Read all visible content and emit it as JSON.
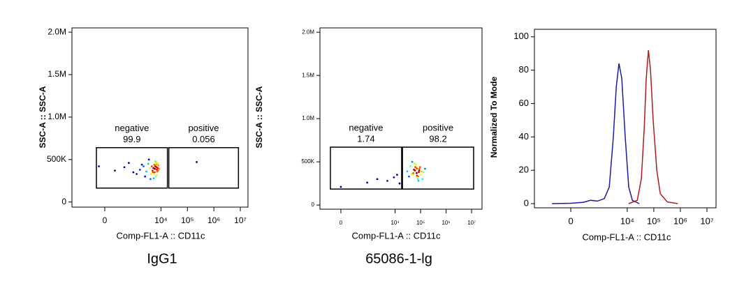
{
  "chart_data": [
    {
      "type": "scatter",
      "title": "IgG1",
      "xlabel": "Comp-FL1-A :: CD11c",
      "ylabel": "SSC-A :: SSC-A",
      "xscale": "biex",
      "color_map": "jet",
      "xlim": [
        -1300,
        19500000
      ],
      "ylim": [
        -60000,
        2050000
      ],
      "xticks": [
        0,
        {
          "value": 10000,
          "label": "10⁴"
        },
        {
          "value": 100000,
          "label": "10⁵"
        },
        {
          "value": 1000000,
          "label": "10⁶"
        },
        {
          "value": 10000000,
          "label": "10⁷"
        }
      ],
      "yticks": [
        0,
        {
          "value": 500000,
          "label": "500K"
        },
        {
          "value": 1000000,
          "label": "1.0M"
        },
        {
          "value": 1500000,
          "label": "1.5M"
        },
        {
          "value": 2000000,
          "label": "2.0M"
        }
      ],
      "x": [
        5200,
        6100,
        7000,
        5800,
        6600,
        7500,
        4800,
        6300,
        5500,
        7200,
        6800,
        5900,
        6400,
        8000,
        4500,
        5000,
        7800,
        6100,
        5600,
        6900,
        3800,
        4200,
        3300,
        2800,
        2200,
        1600,
        900,
        400,
        150,
        -80,
        2500,
        3500,
        1200,
        600,
        4000,
        1900,
        7400,
        8600,
        5300,
        6700,
        224000
      ],
      "values": [
        400000,
        420000,
        380000,
        350000,
        440000,
        400000,
        370000,
        460000,
        330000,
        360000,
        410000,
        390000,
        300000,
        430000,
        420000,
        350000,
        370000,
        480000,
        440000,
        320000,
        400000,
        330000,
        450000,
        360000,
        420000,
        380000,
        350000,
        410000,
        370000,
        420000,
        300000,
        500000,
        330000,
        460000,
        270000,
        440000,
        450000,
        390000,
        280000,
        470000,
        470000
      ],
      "gates": [
        {
          "name": "negative",
          "value": 99.9,
          "x": [
            -119,
            17500
          ],
          "y": [
            164000,
            640000
          ]
        },
        {
          "name": "positive",
          "value": 0.056,
          "x": [
            19800,
            8500000
          ],
          "y": [
            164000,
            640000
          ]
        }
      ]
    },
    {
      "type": "scatter",
      "title": "65086-1-lg",
      "xlabel": "Comp-FL1-A :: CD11c",
      "ylabel": "SSC-A :: SSC-A",
      "xscale": "biex",
      "color_map": "jet",
      "xlim": [
        -485,
        25600000
      ],
      "ylim": [
        -48000,
        2050000
      ],
      "xticks": [
        0,
        {
          "value": 10000,
          "label": "10⁴"
        },
        {
          "value": 100000,
          "label": "10⁵"
        },
        {
          "value": 1000000,
          "label": "10⁶"
        },
        {
          "value": 10000000,
          "label": "10⁷"
        }
      ],
      "yticks": [
        0,
        {
          "value": 500000,
          "label": "500K"
        },
        {
          "value": 1000000,
          "label": "1.0M"
        },
        {
          "value": 1500000,
          "label": "1.5M"
        },
        {
          "value": 2000000,
          "label": "2.0M"
        }
      ],
      "x": [
        60000,
        73000,
        85000,
        50000,
        95000,
        70000,
        65000,
        80000,
        55000,
        110000,
        45000,
        78000,
        68000,
        90000,
        58000,
        100000,
        62000,
        75000,
        52000,
        88000,
        40000,
        130000,
        35000,
        150000,
        120000,
        30000,
        47000,
        83000,
        66000,
        72000,
        0,
        800,
        2000,
        5000,
        9000,
        12000,
        15000
      ],
      "values": [
        400000,
        420000,
        380000,
        350000,
        440000,
        370000,
        460000,
        330000,
        410000,
        390000,
        360000,
        300000,
        430000,
        420000,
        480000,
        350000,
        440000,
        320000,
        370000,
        400000,
        450000,
        380000,
        330000,
        420000,
        300000,
        390000,
        500000,
        280000,
        470000,
        340000,
        210000,
        260000,
        300000,
        280000,
        320000,
        350000,
        250000
      ],
      "gates": [
        {
          "name": "negative",
          "value": 1.74,
          "x": [
            -164,
            18100
          ],
          "y": [
            185000,
            670000
          ]
        },
        {
          "name": "positive",
          "value": 98.2,
          "x": [
            19500,
            12000000
          ],
          "y": [
            185000,
            670000
          ]
        }
      ]
    },
    {
      "type": "line",
      "xlabel": "Comp-FL1-A :: CD11c",
      "ylabel": "Normalized To Mode",
      "xscale": "biex",
      "xlim": [
        -1750,
        22000000
      ],
      "ylim": [
        -2.5,
        104.5
      ],
      "xticks": [
        0,
        {
          "value": 10000,
          "label": "10⁴"
        },
        {
          "value": 100000,
          "label": "10⁵"
        },
        {
          "value": 1000000,
          "label": "10⁶"
        },
        {
          "value": 10000000,
          "label": "10⁷"
        }
      ],
      "yticks": [
        0,
        20,
        40,
        60,
        80,
        100
      ],
      "series": [
        {
          "color": "#1a1aa6",
          "x": [
            -370,
            0,
            198,
            400,
            740,
            1370,
            2110,
            3000,
            3860,
            4900,
            6230,
            8400,
            11400,
            15600,
            28500
          ],
          "values": [
            0,
            0.2,
            0.8,
            2,
            1.5,
            3,
            10,
            40,
            70,
            84,
            75,
            40,
            10,
            2,
            0
          ]
        },
        {
          "color": "#b01c1c",
          "x": [
            11400,
            23900,
            34000,
            43500,
            52000,
            62700,
            75000,
            94500,
            130000,
            175000,
            321000,
            804000
          ],
          "values": [
            0,
            2,
            15,
            45,
            75,
            92,
            80,
            50,
            20,
            6,
            1,
            0
          ]
        }
      ]
    }
  ]
}
